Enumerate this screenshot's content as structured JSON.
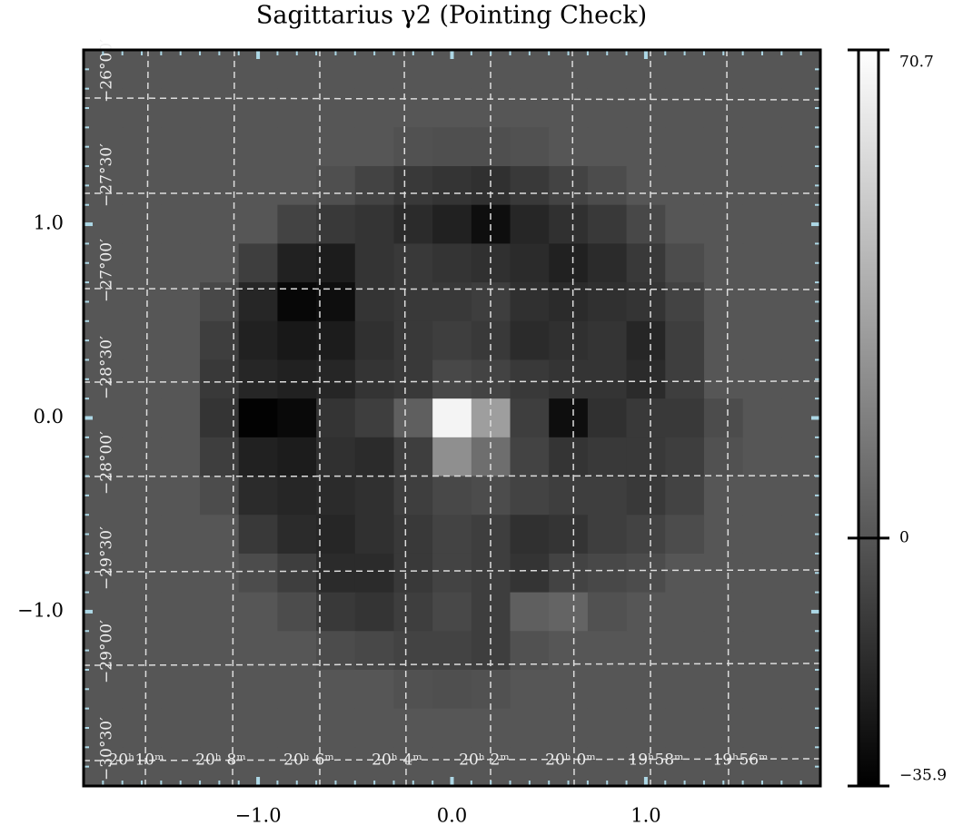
{
  "chart_data": {
    "type": "heatmap",
    "title": "Sagittarius γ2 (Pointing Check)",
    "x": [
      -1.8,
      -1.6,
      -1.4,
      -1.2,
      -1.0,
      -0.8,
      -0.6,
      -0.4,
      -0.2,
      0.0,
      0.2,
      0.4,
      0.6,
      0.8,
      1.0,
      1.2,
      1.4,
      1.6,
      1.8
    ],
    "y": [
      1.8,
      1.6,
      1.4,
      1.2,
      1.0,
      0.8,
      0.6,
      0.4,
      0.2,
      0.0,
      -0.2,
      -0.4,
      -0.6,
      -0.8,
      -1.0,
      -1.2,
      -1.4,
      -1.6,
      -1.8
    ],
    "z": [
      [
        0,
        0,
        0,
        0,
        0,
        0,
        0,
        0,
        0,
        0,
        0,
        0,
        0,
        0,
        0,
        0,
        0,
        0,
        0
      ],
      [
        0,
        0,
        0,
        0,
        0,
        0,
        0,
        0,
        0,
        0,
        0,
        0,
        0,
        0,
        0,
        0,
        0,
        0,
        0
      ],
      [
        0,
        0,
        0,
        0,
        0,
        0,
        0,
        0,
        -2,
        -3,
        -3,
        -2,
        0,
        0,
        0,
        0,
        0,
        0,
        0
      ],
      [
        0,
        0,
        0,
        0,
        0,
        0,
        -3,
        -8,
        -12,
        -14,
        -16,
        -12,
        -8,
        -4,
        0,
        0,
        0,
        0,
        0
      ],
      [
        0,
        0,
        0,
        0,
        0,
        -8,
        -12,
        -14,
        -18,
        -22,
        -30,
        -20,
        -16,
        -12,
        -6,
        0,
        0,
        0,
        0
      ],
      [
        0,
        0,
        0,
        0,
        -10,
        -22,
        -24,
        -14,
        -12,
        -14,
        -16,
        -18,
        -22,
        -18,
        -12,
        -4,
        0,
        0,
        0
      ],
      [
        0,
        0,
        0,
        -6,
        -20,
        -33,
        -30,
        -14,
        -12,
        -12,
        -10,
        -16,
        -18,
        -16,
        -14,
        -8,
        0,
        0,
        0
      ],
      [
        0,
        0,
        0,
        -10,
        -22,
        -26,
        -24,
        -16,
        -12,
        -10,
        -12,
        -18,
        -16,
        -14,
        -20,
        -10,
        0,
        0,
        0
      ],
      [
        0,
        0,
        0,
        -12,
        -20,
        -22,
        -20,
        -14,
        -12,
        -6,
        -8,
        -12,
        -14,
        -14,
        -18,
        -10,
        0,
        0,
        0
      ],
      [
        0,
        0,
        0,
        -14,
        -35,
        -32,
        -14,
        -10,
        4,
        66,
        30,
        -10,
        -30,
        -16,
        -12,
        -12,
        -4,
        0,
        0
      ],
      [
        0,
        0,
        0,
        -10,
        -22,
        -24,
        -16,
        -18,
        -10,
        24,
        10,
        -8,
        -14,
        -12,
        -12,
        -10,
        -2,
        0,
        0
      ],
      [
        0,
        0,
        0,
        -4,
        -18,
        -20,
        -18,
        -16,
        -10,
        -6,
        -4,
        -8,
        -10,
        -10,
        -12,
        -8,
        0,
        0,
        0
      ],
      [
        0,
        0,
        0,
        0,
        -12,
        -18,
        -20,
        -16,
        -12,
        -8,
        -10,
        -16,
        -14,
        -10,
        -8,
        -4,
        0,
        0,
        0
      ],
      [
        0,
        0,
        0,
        0,
        -4,
        -10,
        -18,
        -18,
        -12,
        -8,
        -10,
        -14,
        -8,
        -6,
        -4,
        0,
        0,
        0,
        0
      ],
      [
        0,
        0,
        0,
        0,
        0,
        -4,
        -12,
        -14,
        -10,
        -6,
        -10,
        4,
        6,
        -2,
        0,
        0,
        0,
        0,
        0
      ],
      [
        0,
        0,
        0,
        0,
        0,
        0,
        -4,
        -6,
        -8,
        -8,
        -10,
        -2,
        0,
        0,
        0,
        0,
        0,
        0,
        0
      ],
      [
        0,
        0,
        0,
        0,
        0,
        0,
        0,
        0,
        -2,
        -3,
        -2,
        0,
        0,
        0,
        0,
        0,
        0,
        0,
        0
      ],
      [
        0,
        0,
        0,
        0,
        0,
        0,
        0,
        0,
        0,
        0,
        0,
        0,
        0,
        0,
        0,
        0,
        0,
        0,
        0
      ],
      [
        0,
        0,
        0,
        0,
        0,
        0,
        0,
        0,
        0,
        0,
        0,
        0,
        0,
        0,
        0,
        0,
        0,
        0,
        0
      ]
    ],
    "xlim": [
      -1.9,
      1.9
    ],
    "ylim": [
      -1.9,
      1.9
    ],
    "xticks": [
      {
        "value": -1.0,
        "label": "−1.0"
      },
      {
        "value": 0.0,
        "label": "0.0"
      },
      {
        "value": 1.0,
        "label": "1.0"
      }
    ],
    "yticks": [
      {
        "value": -1.0,
        "label": "−1.0"
      },
      {
        "value": 0.0,
        "label": "0.0"
      },
      {
        "value": 1.0,
        "label": "1.0"
      }
    ],
    "clim": [
      -35.9,
      70.7
    ],
    "cticks": [
      {
        "value": -35.9,
        "label": "−35.9"
      },
      0,
      70.7
    ],
    "colormap": "gray",
    "ra_labels": [
      "20ʰ10ᵐ",
      "20ʰ 8ᵐ",
      "20ʰ 6ᵐ",
      "20ʰ 4ᵐ",
      "20ʰ 2ᵐ",
      "20ʰ 0ᵐ",
      "19ʰ58ᵐ",
      "19ʰ56ᵐ"
    ],
    "dec_labels": [
      "−26°00′",
      "−27°30′",
      "−27°00′",
      "−28°30′",
      "−28°00′",
      "−29°30′",
      "−29°00′",
      "−30°30′"
    ]
  }
}
